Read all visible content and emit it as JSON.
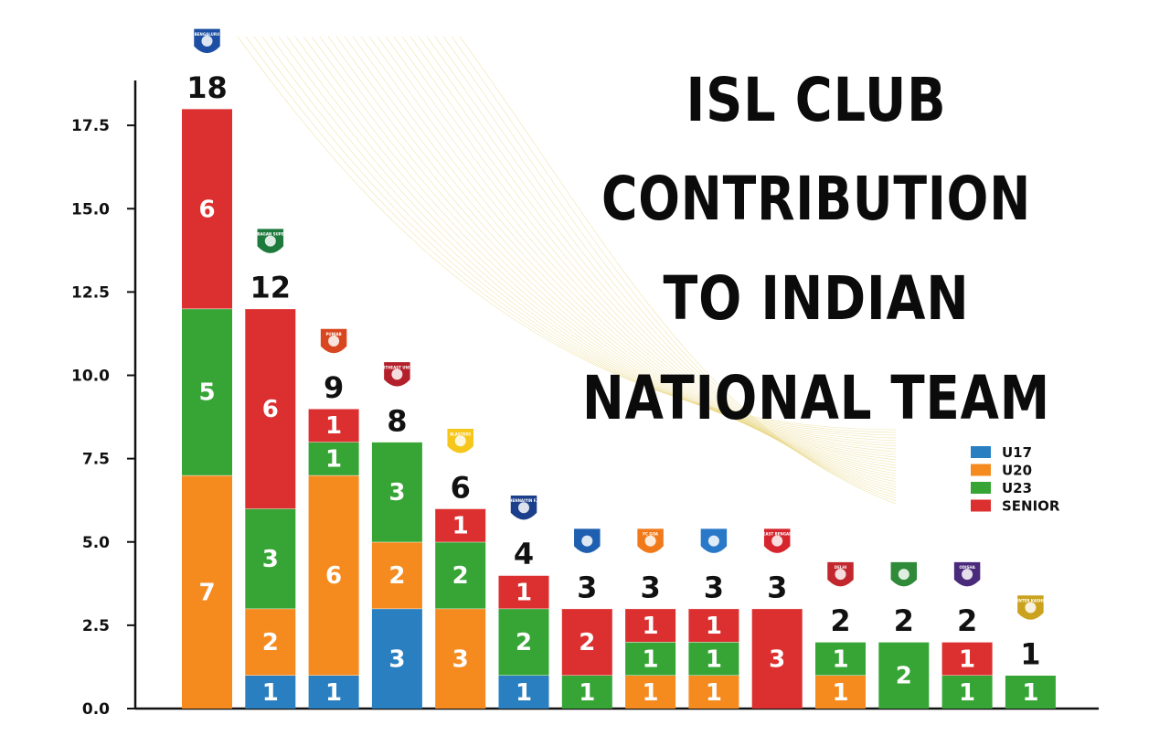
{
  "chart_data": {
    "type": "bar",
    "stacked": true,
    "title_lines": [
      "ISL CLUB",
      "CONTRIBUTION",
      "TO INDIAN",
      "NATIONAL TEAM"
    ],
    "ylim": [
      0,
      19.5
    ],
    "yticks": [
      "0.0",
      "2.5",
      "5.0",
      "7.5",
      "10.0",
      "12.5",
      "15.0",
      "17.5"
    ],
    "grid": false,
    "legend_position": "right",
    "club_logo_texts": [
      "BENGALURU",
      "MOHUN BAGAN SUPER GIANT",
      "PUNJAB",
      "NORTHEAST UNITED",
      "BLASTERS",
      "CHENNAIYIN F.C.",
      "",
      "FC GOA",
      "",
      "EAST BENGAL",
      "DELHI",
      "",
      "ODISHA",
      "INTER KASHI"
    ],
    "series": [
      {
        "name": "U17",
        "color": "#2a7fc1",
        "values": [
          0,
          1,
          1,
          3,
          0,
          1,
          0,
          0,
          0,
          0,
          0,
          0,
          0,
          0
        ]
      },
      {
        "name": "U20",
        "color": "#f58a1f",
        "values": [
          7,
          2,
          6,
          2,
          3,
          0,
          0,
          1,
          1,
          0,
          1,
          0,
          0,
          0
        ]
      },
      {
        "name": "U23",
        "color": "#36a535",
        "values": [
          5,
          3,
          1,
          3,
          2,
          2,
          1,
          1,
          1,
          0,
          1,
          2,
          1,
          1
        ]
      },
      {
        "name": "SENIOR",
        "color": "#dc2f2f",
        "values": [
          6,
          6,
          1,
          0,
          1,
          1,
          2,
          1,
          1,
          3,
          0,
          0,
          1,
          0
        ]
      }
    ],
    "totals": [
      18,
      12,
      9,
      8,
      6,
      4,
      3,
      3,
      3,
      3,
      2,
      2,
      2,
      1
    ]
  }
}
